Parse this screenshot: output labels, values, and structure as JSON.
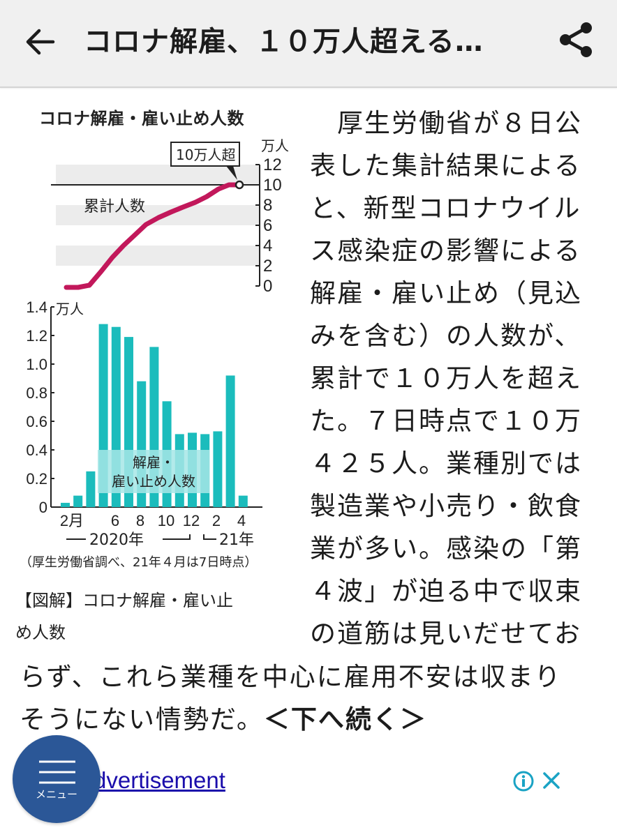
{
  "header": {
    "title": "コロナ解雇、１０万人超える…",
    "back_icon": "arrow-left-icon",
    "share_icon": "share-icon"
  },
  "figure": {
    "title": "コロナ解雇・雇い止め人数",
    "line_panel": {
      "unit": "万人",
      "series_label": "累計人数",
      "callout": "10万人超",
      "y_ticks": [
        "12",
        "10",
        "8",
        "6",
        "4",
        "2",
        "0"
      ]
    },
    "bar_panel": {
      "unit": "万人",
      "series_label_line1": "解雇・",
      "series_label_line2": "雇い止め人数",
      "y_ticks": [
        "1.4",
        "1.2",
        "1.0",
        "0.8",
        "0.6",
        "0.4",
        "0.2",
        "0"
      ],
      "x_ticks": [
        "2月",
        "6",
        "8",
        "10",
        "12",
        "2",
        "4"
      ],
      "year_2020": "2020年",
      "year_2021": "21年"
    },
    "source_note": "（厚生労働省調べ、21年４月は7日時点）"
  },
  "caption": {
    "line1": "【図解】コロナ解雇・雇い止",
    "line2": "め人数"
  },
  "article": {
    "right_lines": [
      "　厚生労働省が８日公",
      "表した集計結果による",
      "と、新型コロナウイル",
      "ス感染症の影響による",
      "解雇・雇い止め（見込",
      "みを含む）の人数が、",
      "累計で１０万人を超え",
      "た。７日時点で１０万",
      "４２５人。業種別では",
      "製造業や小売り・飲食",
      "業が多い。感染の「第",
      "４波」が迫る中で収束",
      "の道筋は見いだせてお"
    ],
    "full_line1": "らず、これら業種を中心に雇用不安は収まり",
    "full_line2": "そうにない情勢だ。",
    "continue_link": "＜下へ続く＞"
  },
  "ad": {
    "link_text": "Advertisement",
    "info_icon": "info-icon",
    "close_icon": "close-icon"
  },
  "menu_button": {
    "label": "メニュー",
    "icon": "hamburger-icon"
  },
  "colors": {
    "header_bg": "#f0f0f0",
    "line_color": "#c2185b",
    "bar_color": "#1bbcbc",
    "bar_label_band": "#a6e6e6",
    "menu_fab": "#2b5797",
    "ad_link": "#1a0dab",
    "ad_icons": "#1aa3c4"
  },
  "chart_data": [
    {
      "type": "line",
      "title": "コロナ解雇・雇い止め人数 — 累計人数",
      "ylabel": "万人",
      "ylim": [
        0,
        12
      ],
      "y_ticks": [
        0,
        2,
        4,
        6,
        8,
        10,
        12
      ],
      "x": [
        "2020-02",
        "2020-03",
        "2020-04",
        "2020-05",
        "2020-06",
        "2020-07",
        "2020-08",
        "2020-09",
        "2020-10",
        "2020-11",
        "2020-12",
        "2021-01",
        "2021-02",
        "2021-03",
        "2021-04-07"
      ],
      "series": [
        {
          "name": "累計人数",
          "values": [
            0.03,
            0.1,
            0.4,
            1.7,
            3.0,
            4.2,
            5.2,
            6.3,
            7.0,
            7.5,
            8.0,
            8.5,
            9.0,
            9.9,
            10.04
          ]
        }
      ],
      "annotations": [
        "10万人超"
      ],
      "reference_line": 10,
      "grid": "alternating bands"
    },
    {
      "type": "bar",
      "title": "解雇・雇い止め人数（月別）",
      "ylabel": "万人",
      "ylim": [
        0,
        1.4
      ],
      "y_ticks": [
        0,
        0.2,
        0.4,
        0.6,
        0.8,
        1.0,
        1.2,
        1.4
      ],
      "categories": [
        "2020-02",
        "2020-03",
        "2020-04",
        "2020-05",
        "2020-06",
        "2020-07",
        "2020-08",
        "2020-09",
        "2020-10",
        "2020-11",
        "2020-12",
        "2021-01",
        "2021-02",
        "2021-03",
        "2021-04"
      ],
      "x_tick_labels": [
        "2月",
        "6",
        "8",
        "10",
        "12",
        "2",
        "4"
      ],
      "values": [
        0.03,
        0.08,
        0.25,
        1.28,
        1.26,
        1.19,
        0.88,
        1.12,
        0.74,
        0.51,
        0.52,
        0.51,
        0.53,
        0.92,
        0.08
      ],
      "series_label": "解雇・雇い止め人数",
      "xlabel_groups": [
        "2020年",
        "21年"
      ],
      "note": "（厚生労働省調べ、21年４月は7日時点）"
    }
  ]
}
